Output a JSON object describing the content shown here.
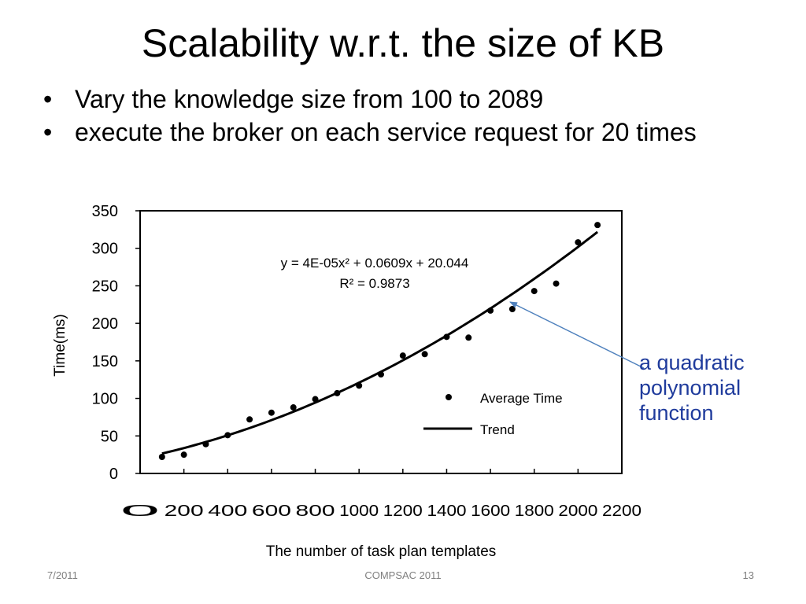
{
  "slide": {
    "title": "Scalability w.r.t. the size of KB",
    "bullets": [
      "Vary the knowledge size from 100 to 2089",
      "execute the broker on each service request for 20 times"
    ],
    "bullet_glyph": "•",
    "callout_lines": [
      "a quadratic",
      "polynomial",
      "function"
    ],
    "callout_color": "#1f3b9c",
    "footer": {
      "date": "7/2011",
      "conference": "COMPSAC 2011",
      "page": "13"
    }
  },
  "chart_data": {
    "type": "scatter",
    "xlabel": "The number of task plan templates",
    "ylabel": "Time(ms)",
    "xlim": [
      0,
      2200
    ],
    "ylim": [
      0,
      350
    ],
    "xticks": [
      0,
      200,
      400,
      600,
      800,
      1000,
      1200,
      1400,
      1600,
      1800,
      2000,
      2200
    ],
    "yticks": [
      0,
      50,
      100,
      150,
      200,
      250,
      300,
      350
    ],
    "grid": false,
    "legend_position": "center-right",
    "equation": "y = 4E-05x² + 0.0609x + 20.044",
    "r_squared": "R² = 0.9873",
    "series": [
      {
        "name": "Average Time",
        "kind": "points",
        "x": [
          100,
          200,
          300,
          400,
          500,
          600,
          700,
          800,
          900,
          1000,
          1100,
          1200,
          1300,
          1400,
          1500,
          1600,
          1700,
          1800,
          1900,
          2000,
          2089
        ],
        "y": [
          22,
          25,
          39,
          51,
          72,
          81,
          88,
          99,
          107,
          117,
          132,
          157,
          159,
          182,
          181,
          217,
          219,
          243,
          253,
          308,
          331
        ]
      },
      {
        "name": "Trend",
        "kind": "line",
        "coefficients": [
          4e-05,
          0.0609,
          20.044
        ],
        "x_range": [
          100,
          2089
        ]
      }
    ],
    "annotation_arrow_color": "#4f81bd"
  }
}
